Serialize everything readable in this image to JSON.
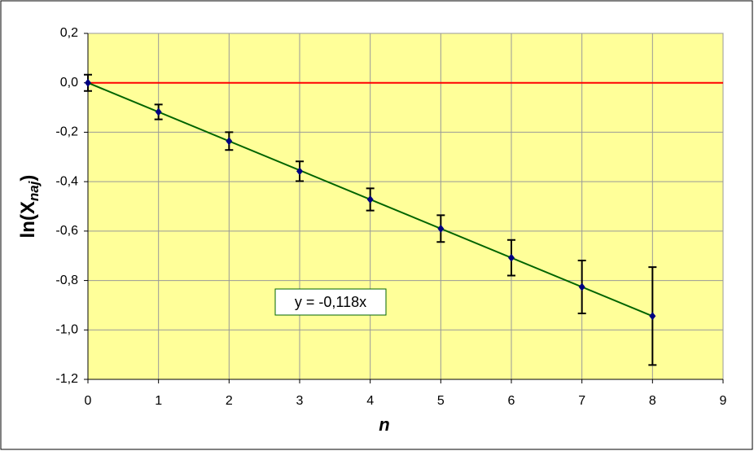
{
  "chart_data": {
    "type": "scatter",
    "ylabel": {
      "main": "ln(X",
      "sub": "naj",
      "close": ")"
    },
    "xlabel": "n",
    "x": [
      0,
      1,
      2,
      3,
      4,
      5,
      6,
      7,
      8
    ],
    "series": [
      {
        "color": "#000080",
        "values": [
          0,
          -0.118,
          -0.236,
          -0.358,
          -0.472,
          -0.59,
          -0.708,
          -0.826,
          -0.944
        ],
        "errors": [
          0.033,
          0.03,
          0.036,
          0.04,
          0.045,
          0.054,
          0.072,
          0.107,
          0.198
        ]
      }
    ],
    "trendline": {
      "slope": -0.118,
      "color": "#006400",
      "label": "y = -0,118x"
    },
    "reference_line": {
      "value": 0,
      "color": "#ff0000"
    },
    "xlim": [
      0,
      9
    ],
    "xticks": [
      0,
      1,
      2,
      3,
      4,
      5,
      6,
      7,
      8,
      9
    ],
    "ylim": [
      -1.2,
      0.2
    ],
    "yticks": [
      {
        "value": -1.2,
        "label": "-1,2"
      },
      {
        "value": -1.0,
        "label": "-1,0"
      },
      {
        "value": -0.8,
        "label": "-0,8"
      },
      {
        "value": -0.6,
        "label": "-0,6"
      },
      {
        "value": -0.4,
        "label": "-0,4"
      },
      {
        "value": -0.2,
        "label": "-0,2"
      },
      {
        "value": 0.0,
        "label": "0,0"
      },
      {
        "value": 0.2,
        "label": "0,2"
      }
    ],
    "grid": true,
    "plot_background": "#ffff99"
  }
}
